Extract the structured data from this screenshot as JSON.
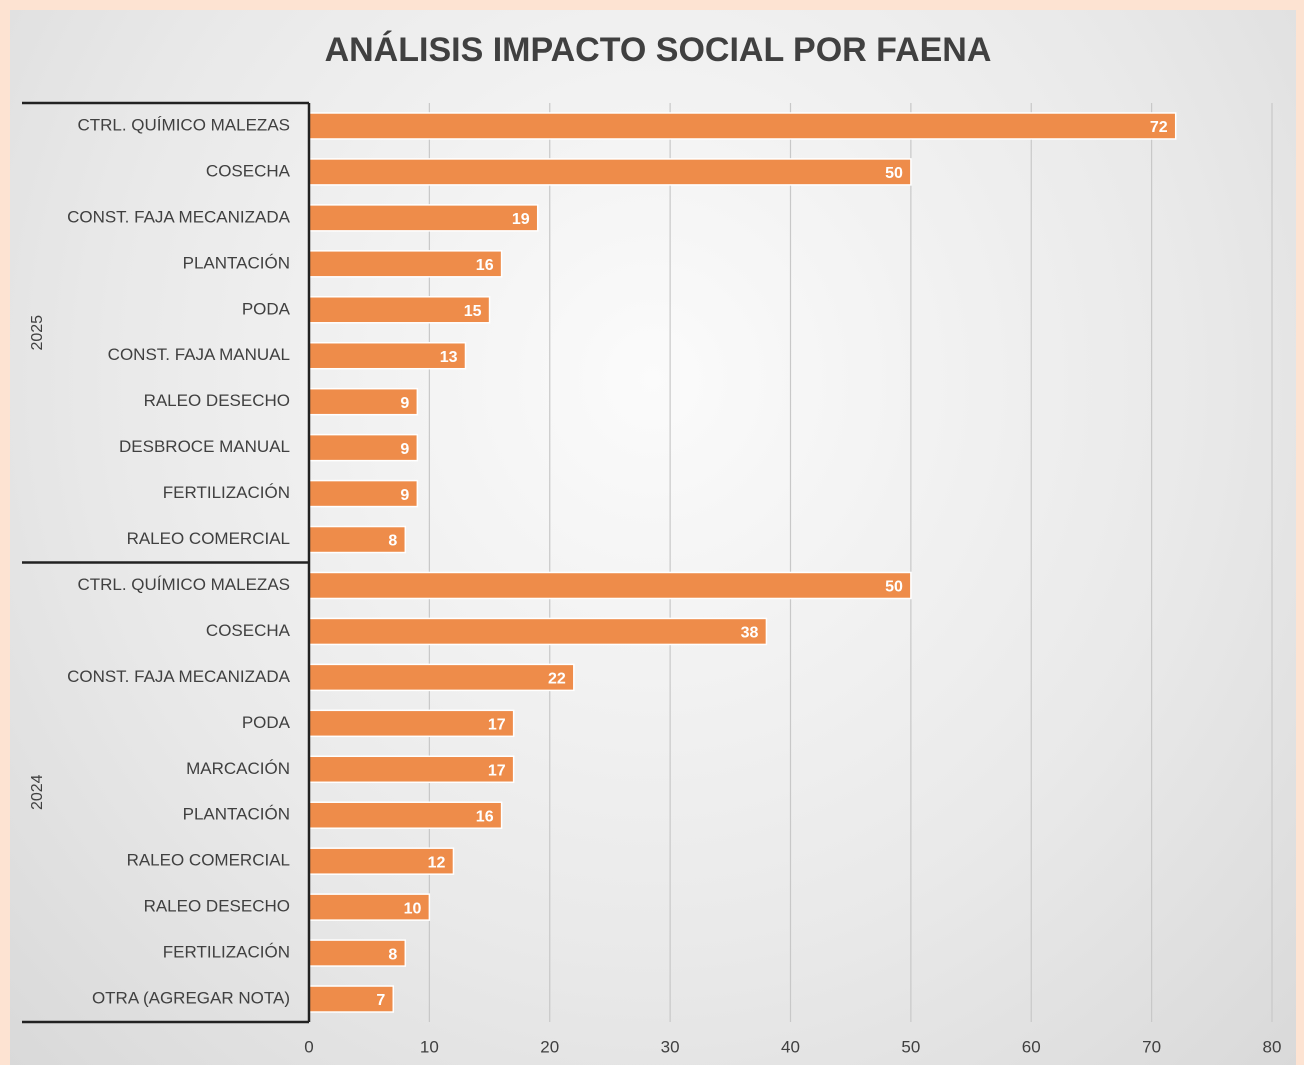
{
  "chart_data": {
    "type": "bar",
    "orientation": "horizontal",
    "title": "ANÁLISIS IMPACTO SOCIAL POR FAENA",
    "color": "#ee8c4a",
    "xlim": [
      0,
      80
    ],
    "xticks": [
      0,
      10,
      20,
      30,
      40,
      50,
      60,
      70,
      80
    ],
    "grid": true,
    "groups": [
      {
        "name": "2025",
        "categories": [
          "CTRL. QUÍMICO MALEZAS",
          "COSECHA",
          "CONST. FAJA MECANIZADA",
          "PLANTACIÓN",
          "PODA",
          "CONST. FAJA MANUAL",
          "RALEO DESECHO",
          "DESBROCE MANUAL",
          "FERTILIZACIÓN",
          "RALEO COMERCIAL"
        ],
        "values": [
          72,
          50,
          19,
          16,
          15,
          13,
          9,
          9,
          9,
          8
        ]
      },
      {
        "name": "2024",
        "categories": [
          "CTRL. QUÍMICO MALEZAS",
          "COSECHA",
          "CONST. FAJA MECANIZADA",
          "PODA",
          "MARCACIÓN",
          "PLANTACIÓN",
          "RALEO COMERCIAL",
          "RALEO DESECHO",
          "FERTILIZACIÓN",
          "OTRA (AGREGAR NOTA)"
        ],
        "values": [
          50,
          38,
          22,
          17,
          17,
          16,
          12,
          10,
          8,
          7
        ]
      }
    ]
  }
}
